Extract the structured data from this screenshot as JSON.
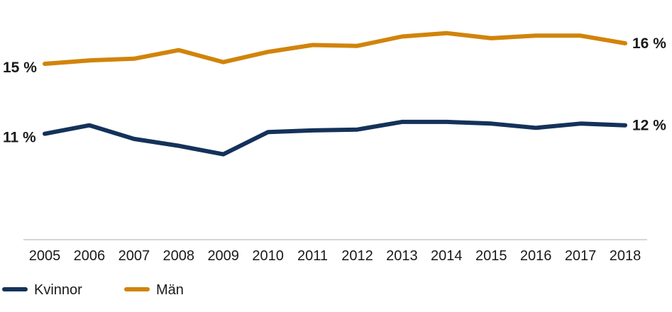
{
  "chart_data": {
    "type": "line",
    "title": "",
    "xlabel": "",
    "ylabel": "",
    "x": [
      "2005",
      "2006",
      "2007",
      "2008",
      "2009",
      "2010",
      "2011",
      "2012",
      "2013",
      "2014",
      "2015",
      "2016",
      "2017",
      "2018"
    ],
    "ylim": [
      5,
      18
    ],
    "grid": false,
    "legend_position": "bottom-left",
    "series": [
      {
        "name": "Kvinnor",
        "color": "#14325a",
        "values": [
          11.2,
          11.7,
          10.9,
          10.5,
          10.0,
          11.3,
          11.4,
          11.45,
          11.9,
          11.9,
          11.8,
          11.55,
          11.8,
          11.7
        ],
        "start_label": "11 %",
        "end_label": "12 %"
      },
      {
        "name": "Män",
        "color": "#d1840a",
        "values": [
          15.3,
          15.5,
          15.6,
          16.1,
          15.4,
          16.0,
          16.4,
          16.35,
          16.9,
          17.1,
          16.8,
          16.95,
          16.95,
          16.5
        ],
        "start_label": "15 %",
        "end_label": "16 %"
      }
    ]
  }
}
